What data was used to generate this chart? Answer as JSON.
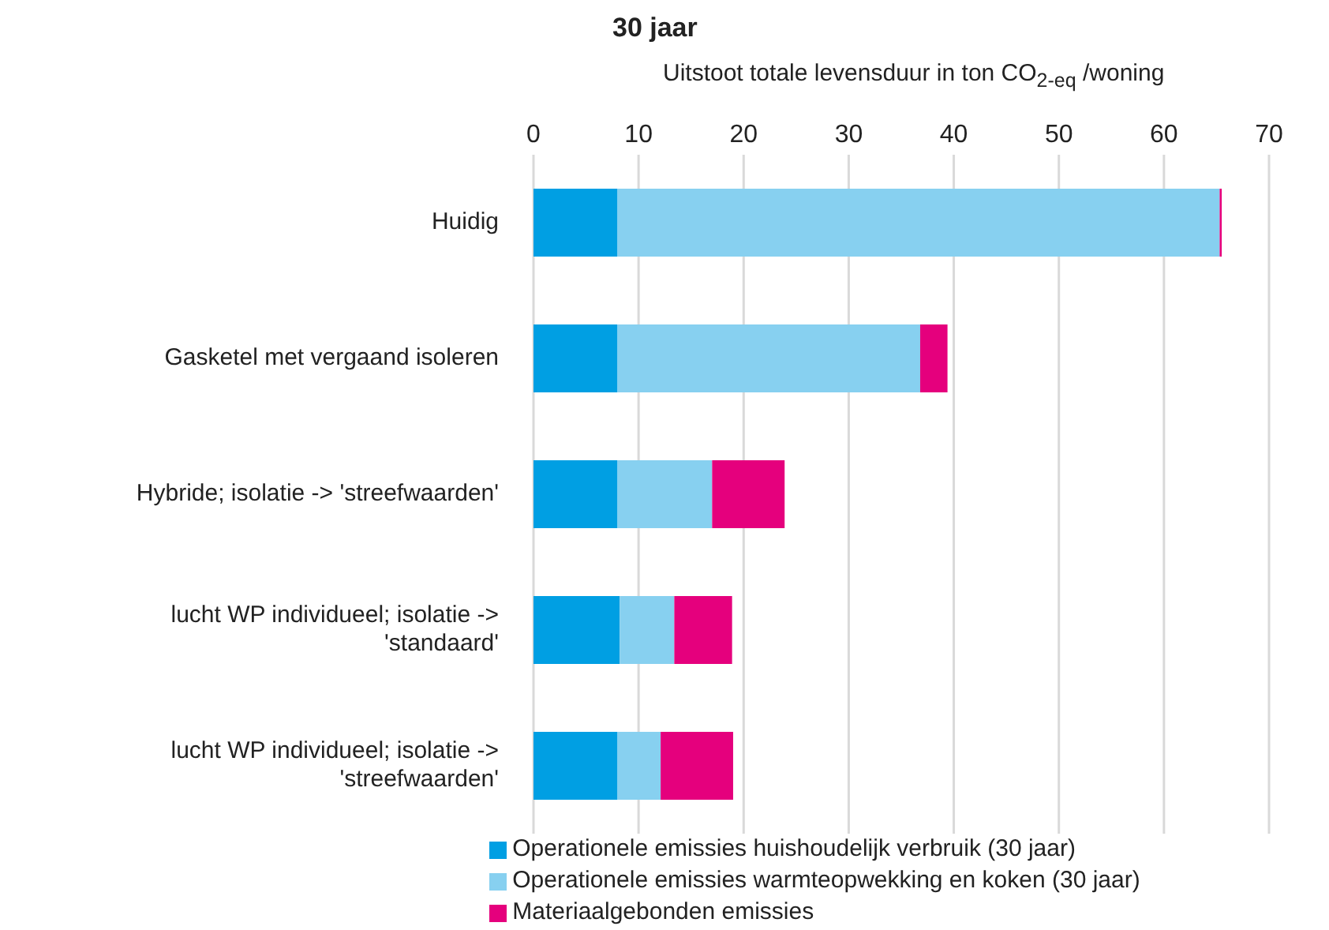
{
  "chart_data": {
    "type": "bar",
    "orientation": "horizontal",
    "stacked": true,
    "title": "30 jaar",
    "xlabel": "Uitstoot totale levensduur in ton CO$_{2-eq}$ /woning",
    "categories": [
      "Huidig",
      "Gasketel met vergaand isoleren",
      "Hybride; isolatie -> 'streefwaarden'",
      "lucht WP individueel; isolatie -> 'standaard'",
      "lucht WP individueel; isolatie -> 'streefwaarden'"
    ],
    "series": [
      {
        "name": "Operationele emissies huishoudelijk verbruik (30 jaar)",
        "color": "#009fe3",
        "values": [
          8,
          8,
          8,
          8.2,
          8
        ]
      },
      {
        "name": "Operationele emissies warmteopwekking en koken (30 jaar)",
        "color": "#87d0f0",
        "values": [
          57.3,
          28.8,
          9,
          5.2,
          4.1
        ]
      },
      {
        "name": "Materiaalgebonden emissies",
        "color": "#e5007d",
        "values": [
          0.2,
          2.6,
          6.9,
          5.5,
          6.9
        ]
      }
    ],
    "xlim": [
      0,
      70
    ],
    "xticks": [
      0,
      10,
      20,
      30,
      40,
      50,
      60,
      70
    ],
    "grid": "x",
    "legend": "bottom"
  }
}
